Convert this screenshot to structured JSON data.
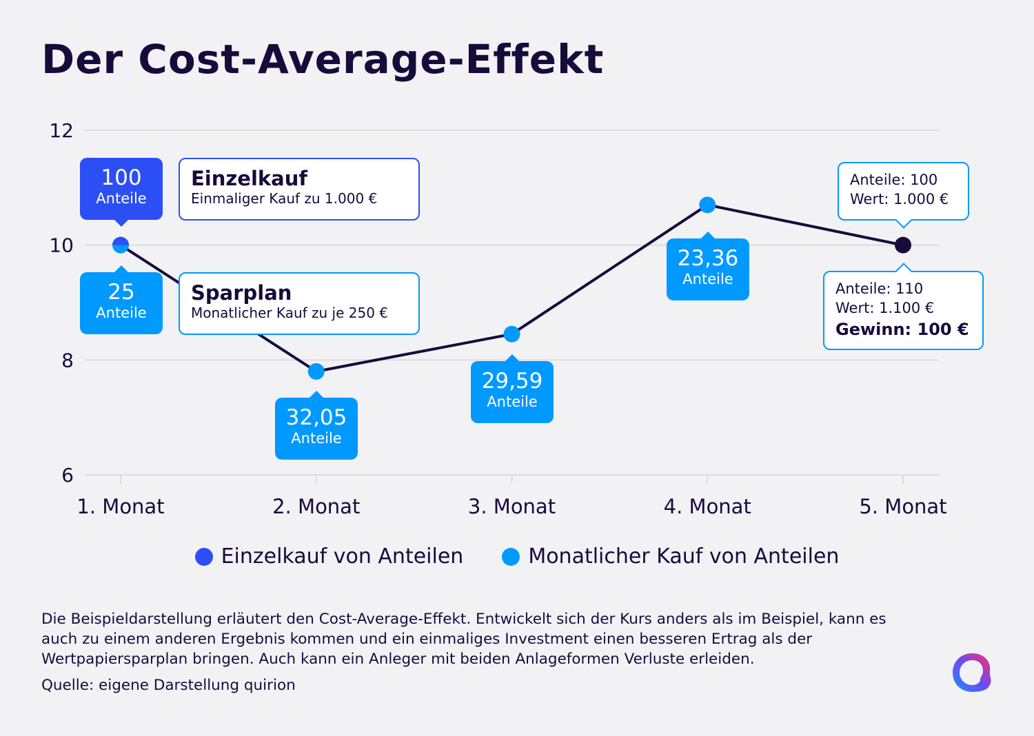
{
  "title": "Der Cost-Average-Effekt",
  "chart_data": {
    "type": "line",
    "categories": [
      "1. Monat",
      "2. Monat",
      "3. Monat",
      "4. Monat",
      "5. Monat"
    ],
    "values": [
      10,
      7.8,
      8.45,
      10.7,
      10
    ],
    "ylim": [
      6,
      12
    ],
    "yticks": [
      "6",
      "8",
      "10",
      "12"
    ],
    "ytick_values": [
      6,
      8,
      10,
      12
    ],
    "grid": true,
    "legend_placement": "bottom",
    "colors": {
      "einzelkauf": "#2b4ff5",
      "monatlich": "#0099ff",
      "line": "#170b3b",
      "final_point": "#170b3b"
    },
    "legend": [
      "Einzelkauf von Anteilen",
      "Monatlicher Kauf von Anteilen"
    ],
    "data_labels": [
      {
        "value": "100",
        "unit": "Anteile",
        "series": "Einzelkauf"
      },
      {
        "value": "25",
        "unit": "Anteile",
        "series": "Monatlich"
      },
      {
        "value": "32,05",
        "unit": "Anteile",
        "series": "Monatlich"
      },
      {
        "value": "29,59",
        "unit": "Anteile",
        "series": "Monatlich"
      },
      {
        "value": "23,36",
        "unit": "Anteile",
        "series": "Monatlich"
      }
    ],
    "annotations": {
      "einzelkauf": {
        "heading": "Einzelkauf",
        "text": "Einmaliger Kauf zu 1.000 €"
      },
      "sparplan": {
        "heading": "Sparplan",
        "text": "Monatlicher Kauf zu je 250 €"
      },
      "result_einzel": {
        "line1": "Anteile: 100",
        "line2": "Wert: 1.000 €"
      },
      "result_spar": {
        "line1": "Anteile: 110",
        "line2": "Wert: 1.100 €",
        "line3": "Gewinn: 100 €"
      }
    }
  },
  "footnote": "Die Beispieldarstellung erläutert den Cost-Average-Effekt. Entwickelt sich der Kurs anders als im Beispiel, kann es auch zu einem anderen Ergebnis kommen und ein einmaliges Investment einen besseren Ertrag als der Wertpapiersparplan bringen. Auch kann ein Anleger mit beiden Anlageformen Verluste erleiden.",
  "source": "Quelle: eigene Darstellung quirion",
  "logo": "quirion"
}
